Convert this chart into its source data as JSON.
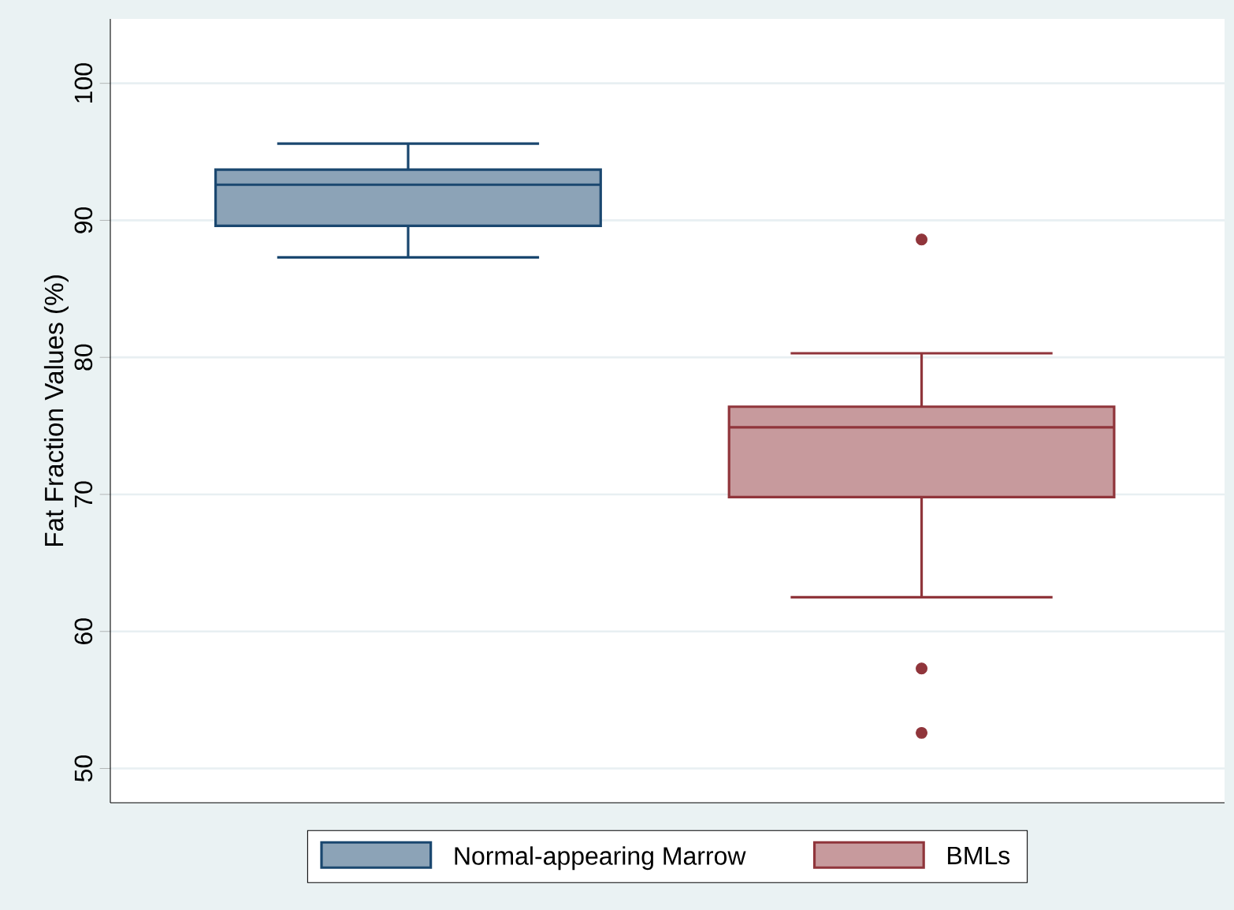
{
  "chart_data": {
    "type": "box",
    "ylabel": "Fat Fraction Values (%)",
    "categories": [
      null,
      null
    ],
    "ylim": [
      47.5,
      104.7
    ],
    "yticks": [
      50,
      60,
      70,
      80,
      90,
      100
    ],
    "grid": "y",
    "legend": "bottom",
    "tick_labels": "y",
    "marker": "circle",
    "series": [
      {
        "name": "Normal-appearing Marrow",
        "color": "#1a476f",
        "boxes": [
          {
            "low": 87.3,
            "q1": 89.6,
            "median": 92.6,
            "q3": 93.7,
            "high": 95.6
          },
          null
        ]
      },
      {
        "name": "BMLs",
        "color": "#90353b",
        "boxes": [
          null,
          {
            "low": 62.5,
            "q1": 69.8,
            "median": 74.9,
            "q3": 76.4,
            "high": 80.3,
            "outliers": [
              88.6,
              57.3,
              52.6
            ]
          }
        ]
      }
    ]
  }
}
